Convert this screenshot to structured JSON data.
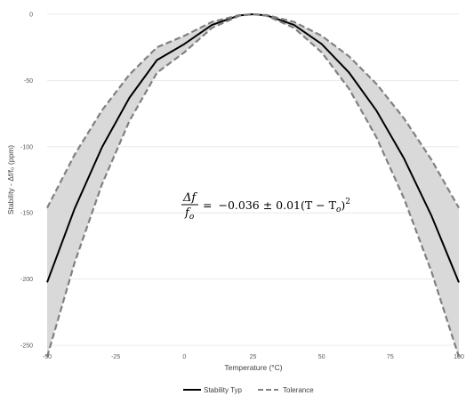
{
  "chart_data": {
    "type": "area",
    "xlabel": "Temperature (°C)",
    "ylabel": "Stability - Δf/f₀ (ppm)",
    "xlim": [
      -50,
      100
    ],
    "ylim": [
      -250,
      0
    ],
    "x_ticks": [
      "-50",
      "-25",
      "0",
      "25",
      "50",
      "75",
      "100"
    ],
    "y_ticks": [
      "0",
      "-50",
      "-100",
      "-150",
      "-200",
      "-250"
    ],
    "grid": "horizontal",
    "legend_position": "bottom",
    "x": [
      -50,
      -40,
      -30,
      -20,
      -10,
      0,
      10,
      20,
      25,
      30,
      40,
      50,
      60,
      70,
      80,
      90,
      100
    ],
    "series": [
      {
        "name": "Stability Typ",
        "style": "solid",
        "color": "#000000",
        "values": [
          -202.5,
          -146.9,
          -100.4,
          -63.0,
          -34.6,
          -22.5,
          -8.1,
          -0.9,
          0,
          -0.9,
          -8.1,
          -22.5,
          -44.1,
          -72.9,
          -108.9,
          -152.1,
          -202.5
        ]
      },
      {
        "name": "Tolerance",
        "style": "dashed",
        "color": "#808080",
        "role": "upper",
        "values": [
          -146.25,
          -106.1,
          -72.5,
          -45.5,
          -25.0,
          -16.25,
          -5.85,
          -0.65,
          0,
          -0.65,
          -5.85,
          -16.25,
          -31.85,
          -52.65,
          -78.65,
          -109.85,
          -146.25
        ]
      },
      {
        "name": "Tolerance",
        "style": "dashed",
        "color": "#808080",
        "role": "lower",
        "values": [
          -258.75,
          -187.7,
          -128.3,
          -80.5,
          -44.2,
          -28.75,
          -10.35,
          -1.15,
          0,
          -1.15,
          -10.35,
          -28.75,
          -56.35,
          -93.15,
          -139.15,
          -194.35,
          -258.75
        ]
      }
    ],
    "band_fill_color": "#d9d9d9",
    "annotation": {
      "lhs_numerator": "Δf",
      "lhs_denominator": "f",
      "lhs_denominator_sub": "o",
      "equals": "=",
      "rhs_prefix": "−0.036 ± 0.01(T − T",
      "rhs_sub": "o",
      "rhs_close": ")",
      "rhs_exp": "2"
    },
    "legend": [
      {
        "label": "Stability Typ",
        "style": "solid",
        "color": "#000000"
      },
      {
        "label": "Tolerance",
        "style": "dashed",
        "color": "#808080"
      }
    ]
  }
}
